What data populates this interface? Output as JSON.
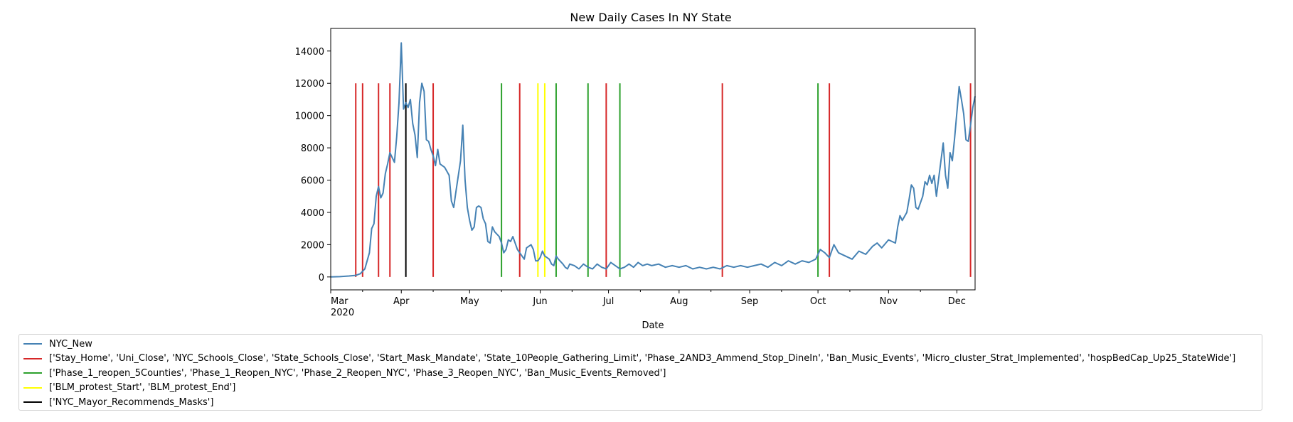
{
  "chart_data": {
    "type": "line",
    "title": "New Daily Cases In NY State",
    "xlabel": "Date",
    "ylabel": "",
    "ylim": [
      -800,
      15400
    ],
    "xlim": [
      "2020-03-01",
      "2020-12-09"
    ],
    "yticks": [
      0,
      2000,
      4000,
      6000,
      8000,
      10000,
      12000,
      14000
    ],
    "xticks": [
      {
        "date": "2020-03-01",
        "label": "Mar",
        "sublabel": "2020"
      },
      {
        "date": "2020-04-01",
        "label": "Apr",
        "sublabel": ""
      },
      {
        "date": "2020-05-01",
        "label": "May",
        "sublabel": ""
      },
      {
        "date": "2020-06-01",
        "label": "Jun",
        "sublabel": ""
      },
      {
        "date": "2020-07-01",
        "label": "Jul",
        "sublabel": ""
      },
      {
        "date": "2020-08-01",
        "label": "Aug",
        "sublabel": ""
      },
      {
        "date": "2020-09-01",
        "label": "Sep",
        "sublabel": ""
      },
      {
        "date": "2020-10-01",
        "label": "Oct",
        "sublabel": ""
      },
      {
        "date": "2020-11-01",
        "label": "Nov",
        "sublabel": ""
      },
      {
        "date": "2020-12-01",
        "label": "Dec",
        "sublabel": ""
      }
    ],
    "grid": false,
    "legend_position": "below",
    "series": [
      {
        "name": "NYC_New",
        "color": "#4682b4",
        "points": [
          [
            "2020-03-01",
            0
          ],
          [
            "2020-03-05",
            20
          ],
          [
            "2020-03-09",
            60
          ],
          [
            "2020-03-12",
            100
          ],
          [
            "2020-03-14",
            200
          ],
          [
            "2020-03-16",
            500
          ],
          [
            "2020-03-18",
            1500
          ],
          [
            "2020-03-19",
            3000
          ],
          [
            "2020-03-20",
            3300
          ],
          [
            "2020-03-21",
            5000
          ],
          [
            "2020-03-22",
            5600
          ],
          [
            "2020-03-23",
            4900
          ],
          [
            "2020-03-24",
            5200
          ],
          [
            "2020-03-25",
            6400
          ],
          [
            "2020-03-26",
            7000
          ],
          [
            "2020-03-27",
            7700
          ],
          [
            "2020-03-28",
            7400
          ],
          [
            "2020-03-29",
            7100
          ],
          [
            "2020-03-30",
            8700
          ],
          [
            "2020-03-31",
            10800
          ],
          [
            "2020-04-01",
            14500
          ],
          [
            "2020-04-02",
            10400
          ],
          [
            "2020-04-03",
            10800
          ],
          [
            "2020-04-04",
            10500
          ],
          [
            "2020-04-05",
            11000
          ],
          [
            "2020-04-06",
            9500
          ],
          [
            "2020-04-07",
            8800
          ],
          [
            "2020-04-08",
            7400
          ],
          [
            "2020-04-09",
            10800
          ],
          [
            "2020-04-10",
            12000
          ],
          [
            "2020-04-11",
            11500
          ],
          [
            "2020-04-12",
            8500
          ],
          [
            "2020-04-13",
            8400
          ],
          [
            "2020-04-14",
            7900
          ],
          [
            "2020-04-15",
            7500
          ],
          [
            "2020-04-16",
            6900
          ],
          [
            "2020-04-17",
            7900
          ],
          [
            "2020-04-18",
            7000
          ],
          [
            "2020-04-20",
            6800
          ],
          [
            "2020-04-22",
            6300
          ],
          [
            "2020-04-23",
            4700
          ],
          [
            "2020-04-24",
            4300
          ],
          [
            "2020-04-25",
            5300
          ],
          [
            "2020-04-27",
            7200
          ],
          [
            "2020-04-28",
            9400
          ],
          [
            "2020-04-29",
            6000
          ],
          [
            "2020-04-30",
            4300
          ],
          [
            "2020-05-01",
            3500
          ],
          [
            "2020-05-02",
            2900
          ],
          [
            "2020-05-03",
            3100
          ],
          [
            "2020-05-04",
            4300
          ],
          [
            "2020-05-05",
            4400
          ],
          [
            "2020-05-06",
            4300
          ],
          [
            "2020-05-07",
            3600
          ],
          [
            "2020-05-08",
            3300
          ],
          [
            "2020-05-09",
            2200
          ],
          [
            "2020-05-10",
            2100
          ],
          [
            "2020-05-11",
            3100
          ],
          [
            "2020-05-12",
            2800
          ],
          [
            "2020-05-14",
            2500
          ],
          [
            "2020-05-15",
            2100
          ],
          [
            "2020-05-16",
            1500
          ],
          [
            "2020-05-17",
            1700
          ],
          [
            "2020-05-18",
            2300
          ],
          [
            "2020-05-19",
            2200
          ],
          [
            "2020-05-20",
            2500
          ],
          [
            "2020-05-21",
            2100
          ],
          [
            "2020-05-22",
            1700
          ],
          [
            "2020-05-24",
            1300
          ],
          [
            "2020-05-25",
            1100
          ],
          [
            "2020-05-26",
            1800
          ],
          [
            "2020-05-27",
            1900
          ],
          [
            "2020-05-28",
            2000
          ],
          [
            "2020-05-29",
            1700
          ],
          [
            "2020-05-30",
            1000
          ],
          [
            "2020-05-31",
            1000
          ],
          [
            "2020-06-01",
            1200
          ],
          [
            "2020-06-02",
            1600
          ],
          [
            "2020-06-03",
            1300
          ],
          [
            "2020-06-04",
            1200
          ],
          [
            "2020-06-05",
            1100
          ],
          [
            "2020-06-06",
            800
          ],
          [
            "2020-06-07",
            700
          ],
          [
            "2020-06-08",
            1300
          ],
          [
            "2020-06-09",
            1100
          ],
          [
            "2020-06-11",
            800
          ],
          [
            "2020-06-12",
            600
          ],
          [
            "2020-06-13",
            500
          ],
          [
            "2020-06-14",
            800
          ],
          [
            "2020-06-16",
            700
          ],
          [
            "2020-06-18",
            500
          ],
          [
            "2020-06-20",
            800
          ],
          [
            "2020-06-22",
            600
          ],
          [
            "2020-06-24",
            500
          ],
          [
            "2020-06-26",
            800
          ],
          [
            "2020-06-28",
            600
          ],
          [
            "2020-06-30",
            500
          ],
          [
            "2020-07-02",
            900
          ],
          [
            "2020-07-04",
            700
          ],
          [
            "2020-07-06",
            500
          ],
          [
            "2020-07-08",
            600
          ],
          [
            "2020-07-10",
            800
          ],
          [
            "2020-07-12",
            600
          ],
          [
            "2020-07-14",
            900
          ],
          [
            "2020-07-16",
            700
          ],
          [
            "2020-07-18",
            800
          ],
          [
            "2020-07-20",
            700
          ],
          [
            "2020-07-23",
            800
          ],
          [
            "2020-07-26",
            600
          ],
          [
            "2020-07-29",
            700
          ],
          [
            "2020-08-01",
            600
          ],
          [
            "2020-08-04",
            700
          ],
          [
            "2020-08-07",
            500
          ],
          [
            "2020-08-10",
            600
          ],
          [
            "2020-08-13",
            500
          ],
          [
            "2020-08-16",
            600
          ],
          [
            "2020-08-19",
            500
          ],
          [
            "2020-08-22",
            700
          ],
          [
            "2020-08-25",
            600
          ],
          [
            "2020-08-28",
            700
          ],
          [
            "2020-08-31",
            600
          ],
          [
            "2020-09-03",
            700
          ],
          [
            "2020-09-06",
            800
          ],
          [
            "2020-09-09",
            600
          ],
          [
            "2020-09-12",
            900
          ],
          [
            "2020-09-15",
            700
          ],
          [
            "2020-09-18",
            1000
          ],
          [
            "2020-09-21",
            800
          ],
          [
            "2020-09-24",
            1000
          ],
          [
            "2020-09-27",
            900
          ],
          [
            "2020-09-30",
            1100
          ],
          [
            "2020-10-02",
            1700
          ],
          [
            "2020-10-04",
            1500
          ],
          [
            "2020-10-06",
            1200
          ],
          [
            "2020-10-08",
            2000
          ],
          [
            "2020-10-10",
            1500
          ],
          [
            "2020-10-13",
            1300
          ],
          [
            "2020-10-16",
            1100
          ],
          [
            "2020-10-19",
            1600
          ],
          [
            "2020-10-22",
            1400
          ],
          [
            "2020-10-25",
            1900
          ],
          [
            "2020-10-27",
            2100
          ],
          [
            "2020-10-29",
            1800
          ],
          [
            "2020-11-01",
            2300
          ],
          [
            "2020-11-04",
            2100
          ],
          [
            "2020-11-05",
            3100
          ],
          [
            "2020-11-06",
            3800
          ],
          [
            "2020-11-07",
            3500
          ],
          [
            "2020-11-09",
            4000
          ],
          [
            "2020-11-10",
            4800
          ],
          [
            "2020-11-11",
            5700
          ],
          [
            "2020-11-12",
            5500
          ],
          [
            "2020-11-13",
            4300
          ],
          [
            "2020-11-14",
            4200
          ],
          [
            "2020-11-16",
            5000
          ],
          [
            "2020-11-17",
            5900
          ],
          [
            "2020-11-18",
            5700
          ],
          [
            "2020-11-19",
            6300
          ],
          [
            "2020-11-20",
            5800
          ],
          [
            "2020-11-21",
            6300
          ],
          [
            "2020-11-22",
            5000
          ],
          [
            "2020-11-24",
            7200
          ],
          [
            "2020-11-25",
            8300
          ],
          [
            "2020-11-26",
            6300
          ],
          [
            "2020-11-27",
            5500
          ],
          [
            "2020-11-28",
            7700
          ],
          [
            "2020-11-29",
            7200
          ],
          [
            "2020-11-30",
            8600
          ],
          [
            "2020-12-01",
            10200
          ],
          [
            "2020-12-02",
            11800
          ],
          [
            "2020-12-03",
            11000
          ],
          [
            "2020-12-04",
            10100
          ],
          [
            "2020-12-05",
            8500
          ],
          [
            "2020-12-06",
            8400
          ],
          [
            "2020-12-07",
            9400
          ],
          [
            "2020-12-08",
            10500
          ],
          [
            "2020-12-09",
            11200
          ]
        ]
      }
    ],
    "event_lines": [
      {
        "color": "#d62728",
        "y_top": 12000,
        "dates": [
          "2020-03-12",
          "2020-03-15",
          "2020-03-22",
          "2020-03-27",
          "2020-04-15",
          "2020-05-23",
          "2020-06-30",
          "2020-08-20",
          "2020-10-06",
          "2020-12-07"
        ]
      },
      {
        "color": "#2ca02c",
        "y_top": 12000,
        "dates": [
          "2020-05-15",
          "2020-06-08",
          "2020-06-22",
          "2020-07-06",
          "2020-10-01"
        ]
      },
      {
        "color": "#ffff00",
        "y_top": 12000,
        "dates": [
          "2020-05-31",
          "2020-06-03"
        ]
      },
      {
        "color": "#000000",
        "y_top": 12000,
        "dates": [
          "2020-04-03"
        ]
      }
    ]
  },
  "legend": {
    "items": [
      {
        "label": "NYC_New",
        "color": "#4682b4"
      },
      {
        "label": "['Stay_Home', 'Uni_Close', 'NYC_Schools_Close', 'State_Schools_Close', 'Start_Mask_Mandate', 'State_10People_Gathering_Limit', 'Phase_2AND3_Ammend_Stop_DineIn', 'Ban_Music_Events', 'Micro_cluster_Strat_Implemented', 'hospBedCap_Up25_StateWide']",
        "color": "#d62728"
      },
      {
        "label": "['Phase_1_reopen_5Counties', 'Phase_1_Reopen_NYC', 'Phase_2_Reopen_NYC', 'Phase_3_Reopen_NYC', 'Ban_Music_Events_Removed']",
        "color": "#2ca02c"
      },
      {
        "label": "['BLM_protest_Start', 'BLM_protest_End']",
        "color": "#ffff00"
      },
      {
        "label": "['NYC_Mayor_Recommends_Masks']",
        "color": "#000000"
      }
    ]
  }
}
